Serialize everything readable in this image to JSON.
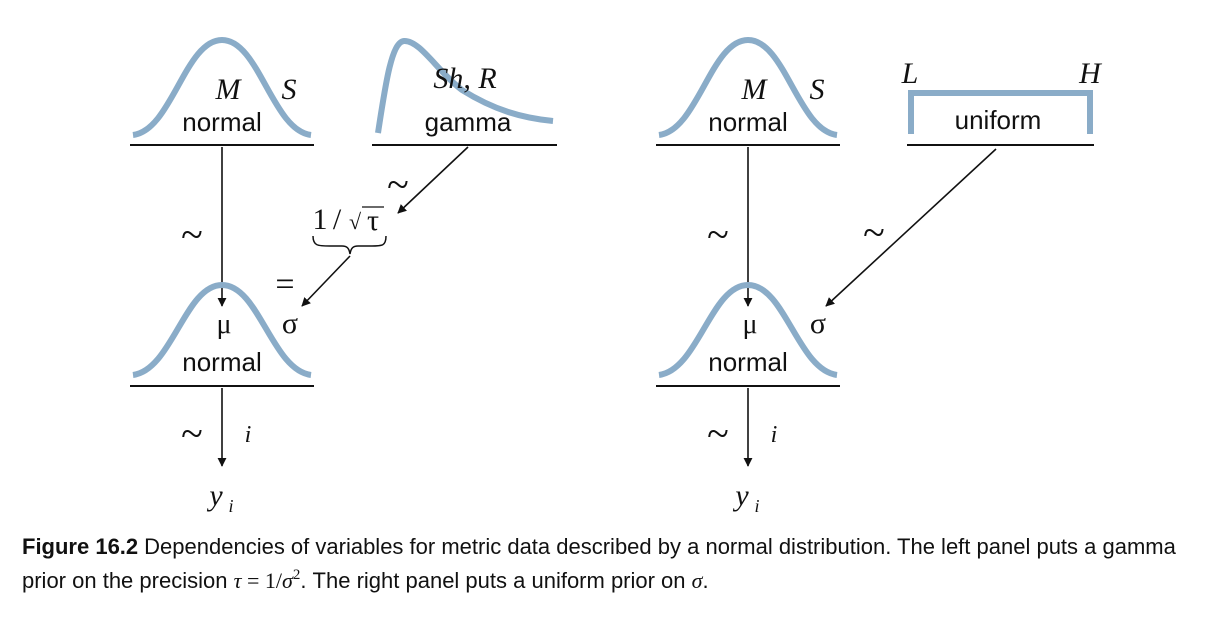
{
  "colors": {
    "curve": "#8aacc8",
    "ink": "#111111"
  },
  "left_panel": {
    "top_normal": {
      "label": "normal",
      "param_mean": "M",
      "param_sd": "S"
    },
    "gamma": {
      "label": "gamma",
      "params": "Sh, R"
    },
    "tilde_gamma": "~",
    "tilde_mu": "~",
    "transform": {
      "one": "1",
      "slash": "/",
      "root": "√",
      "tau": "τ"
    },
    "equals": "=",
    "bottom_normal": {
      "label": "normal",
      "param_mean": "μ",
      "param_sd": "σ"
    },
    "tilde_data": "~",
    "index": "i",
    "data_var": {
      "base": "y",
      "sub": "i"
    }
  },
  "right_panel": {
    "top_normal": {
      "label": "normal",
      "param_mean": "M",
      "param_sd": "S"
    },
    "uniform": {
      "label": "uniform",
      "param_low": "L",
      "param_high": "H"
    },
    "tilde_uniform": "~",
    "tilde_mu": "~",
    "bottom_normal": {
      "label": "normal",
      "param_mean": "μ",
      "param_sd": "σ"
    },
    "tilde_data": "~",
    "index": "i",
    "data_var": {
      "base": "y",
      "sub": "i"
    }
  },
  "caption": {
    "label": "Figure 16.2",
    "text_1": "Dependencies of variables for metric data described by a normal distribution. The left panel puts a gamma prior on the precision ",
    "tau": "τ",
    "eq": " = 1/",
    "sigma": "σ",
    "power": "2",
    "text_2": ". The right panel puts a uniform prior on ",
    "sigma_end": "σ",
    "text_3": "."
  }
}
